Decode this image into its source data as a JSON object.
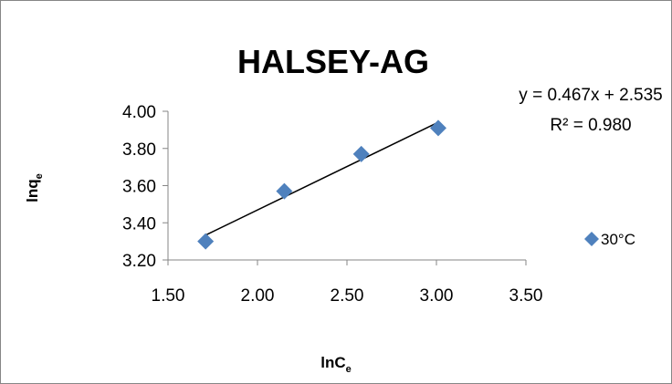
{
  "chart_data": {
    "type": "scatter",
    "title": "HALSEY-AG",
    "xlabel": {
      "main": "lnC",
      "sub": "e"
    },
    "ylabel": {
      "main": "lnq",
      "sub": "e"
    },
    "xlim": [
      1.5,
      3.5
    ],
    "ylim": [
      3.2,
      4.0
    ],
    "x_ticks": [
      "1.50",
      "2.00",
      "2.50",
      "3.00",
      "3.50"
    ],
    "y_ticks": [
      "3.20",
      "3.40",
      "3.60",
      "3.80",
      "4.00"
    ],
    "grid": false,
    "legend_position": "right",
    "series": [
      {
        "name": "30°C",
        "color": "#4f81bd",
        "marker": "diamond",
        "x": [
          1.71,
          2.15,
          2.58,
          3.01
        ],
        "y": [
          3.3,
          3.57,
          3.77,
          3.91
        ]
      }
    ],
    "trendline": {
      "slope": 0.467,
      "intercept": 2.535,
      "x_range": [
        1.71,
        3.01
      ],
      "equation": "y = 0.467x + 2.535",
      "r_squared": "R² = 0.980",
      "color": "#000000"
    }
  }
}
